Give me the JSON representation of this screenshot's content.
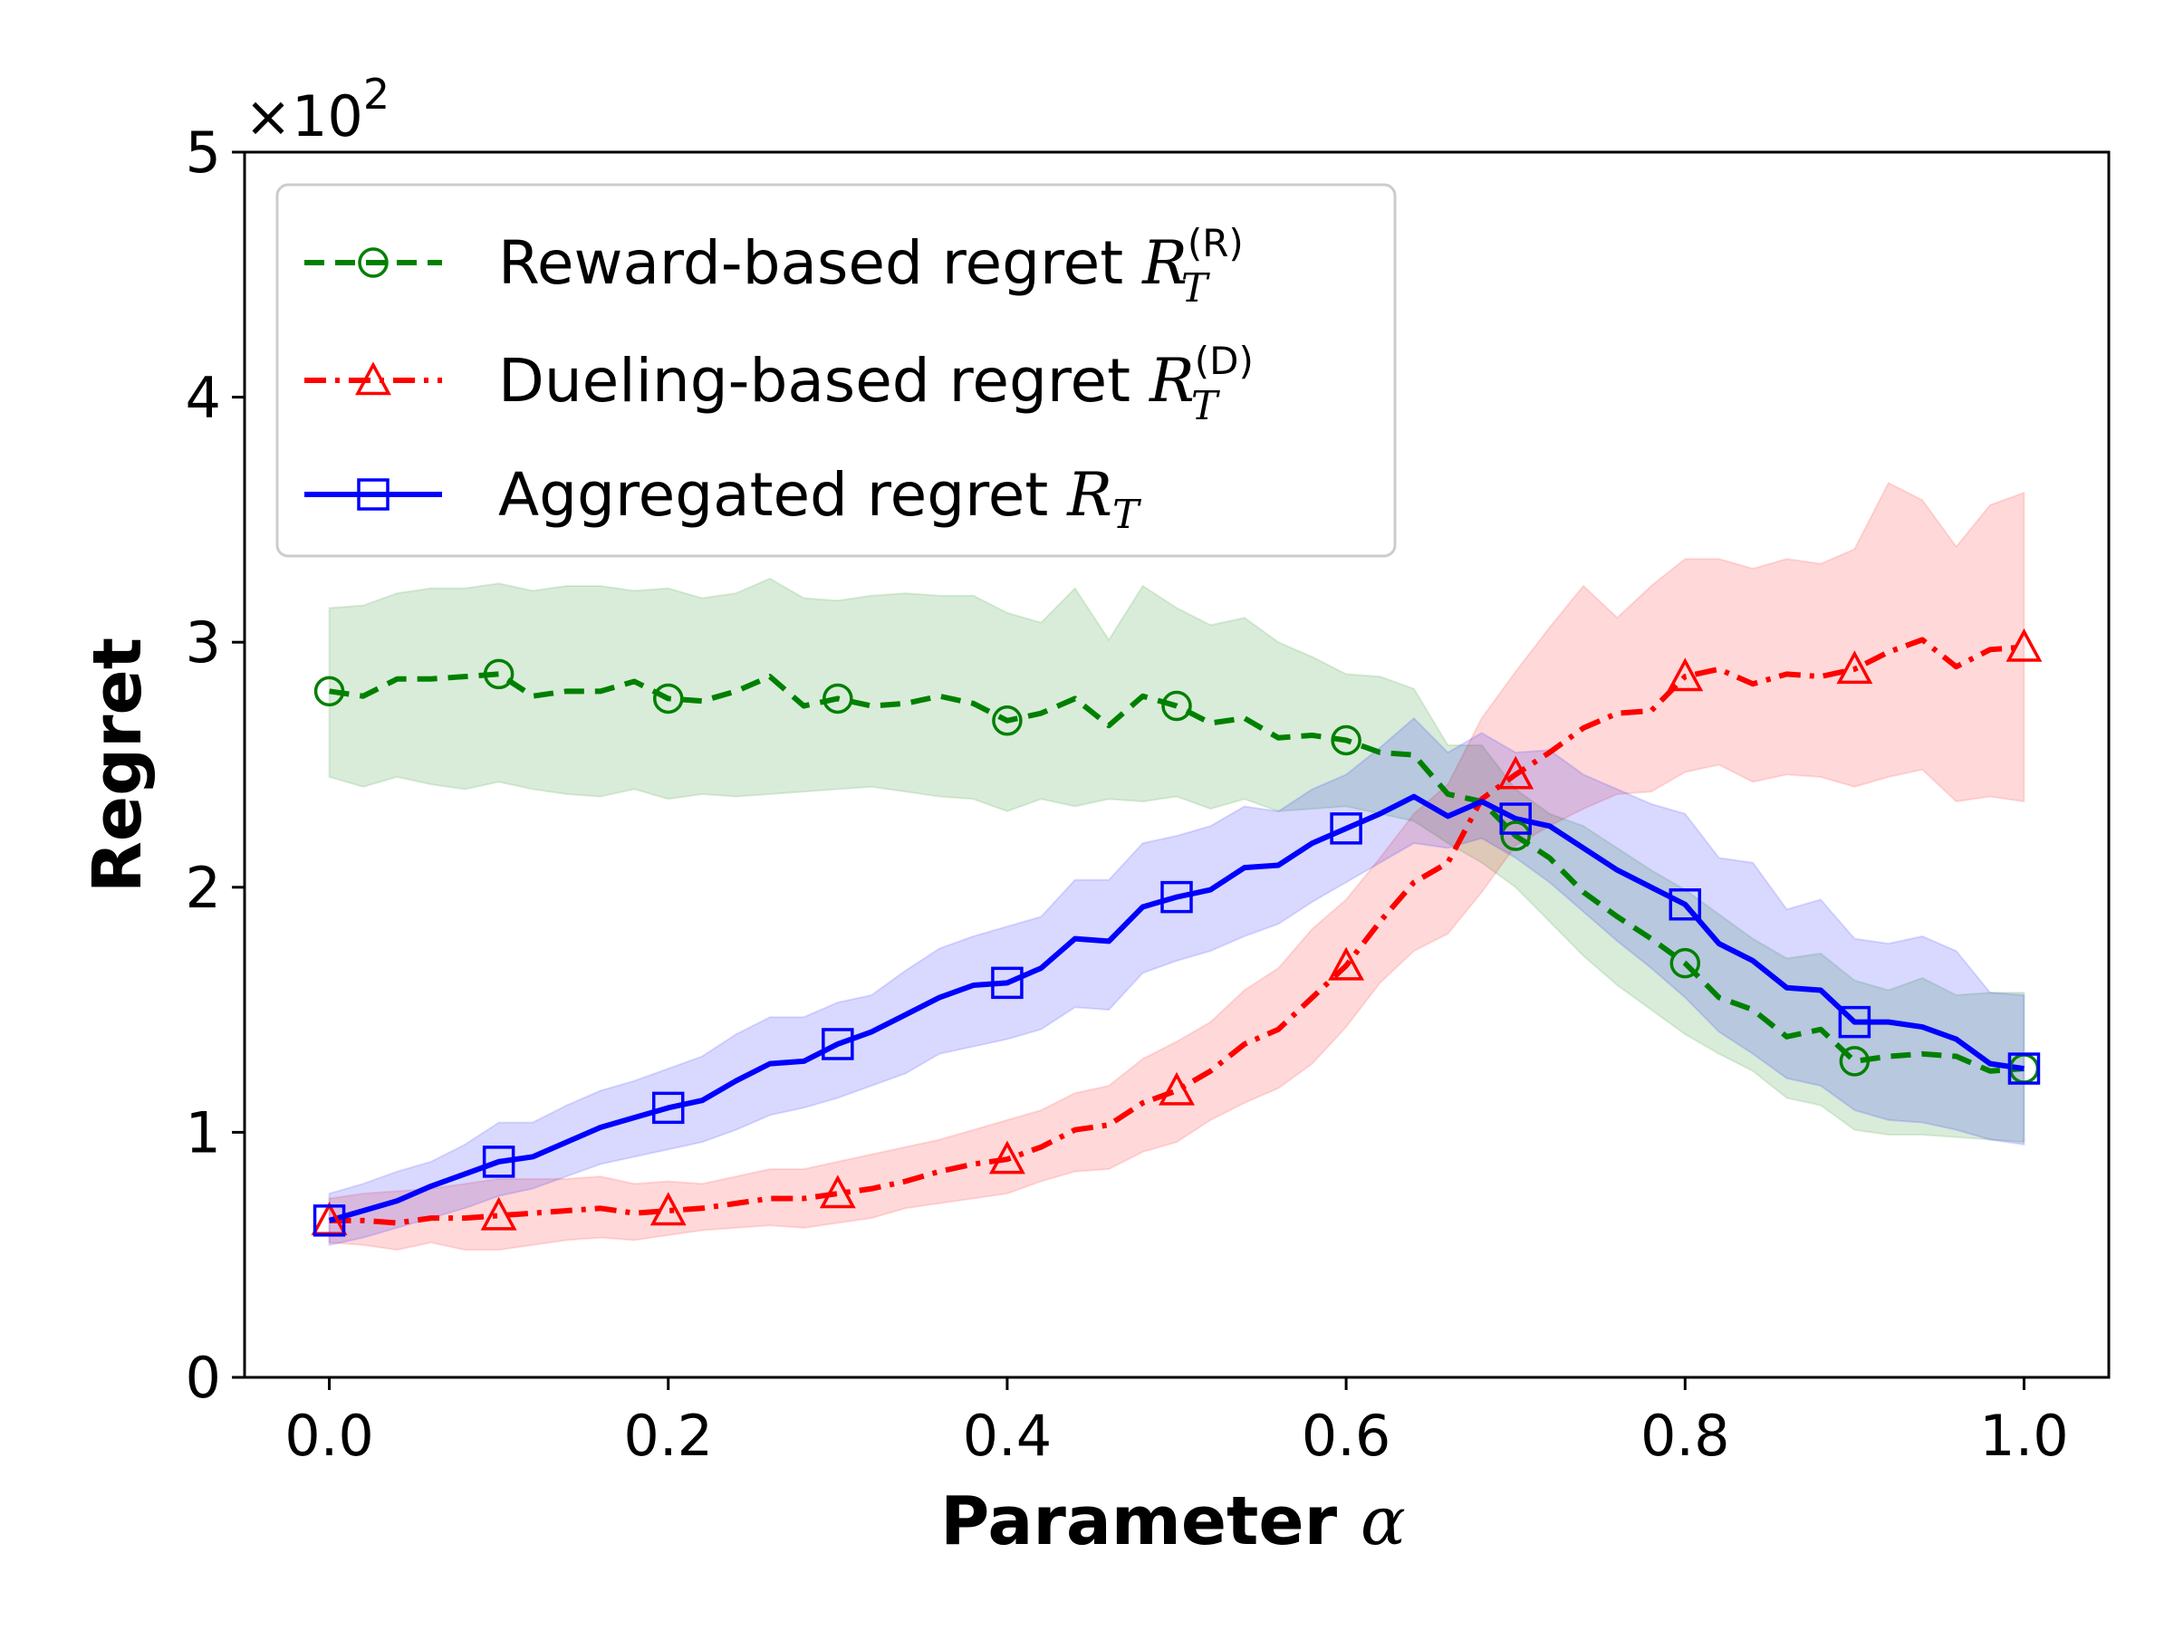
{
  "chart_data": {
    "type": "line",
    "xlabel": "Parameter",
    "xlabel_symbol": "α",
    "ylabel": "Regret",
    "y_multiplier": "×10",
    "y_multiplier_exp": "2",
    "xlim": [
      -0.05,
      1.05
    ],
    "ylim": [
      0,
      5
    ],
    "xticks": [
      "0.0",
      "0.2",
      "0.4",
      "0.6",
      "0.8",
      "1.0"
    ],
    "yticks": [
      "0",
      "1",
      "2",
      "3",
      "4",
      "5"
    ],
    "legend_position": "upper-left",
    "x": [
      0.0,
      0.02,
      0.04,
      0.06,
      0.08,
      0.1,
      0.12,
      0.14,
      0.16,
      0.18,
      0.2,
      0.22,
      0.24,
      0.26,
      0.28,
      0.3,
      0.32,
      0.34,
      0.36,
      0.38,
      0.4,
      0.42,
      0.44,
      0.46,
      0.48,
      0.5,
      0.52,
      0.54,
      0.56,
      0.58,
      0.6,
      0.62,
      0.64,
      0.66,
      0.68,
      0.7,
      0.72,
      0.74,
      0.76,
      0.78,
      0.8,
      0.82,
      0.84,
      0.86,
      0.88,
      0.9,
      0.92,
      0.94,
      0.96,
      0.98,
      1.0
    ],
    "marker_x": [
      0.0,
      0.1,
      0.2,
      0.3,
      0.4,
      0.5,
      0.6,
      0.7,
      0.8,
      0.9,
      1.0
    ],
    "series": [
      {
        "name": "Reward-based regret",
        "symbol": "R",
        "sub": "T",
        "sup": "(R)",
        "color": "#008000",
        "marker": "circle",
        "dash": "dashed",
        "values": [
          2.8,
          2.78,
          2.85,
          2.85,
          2.86,
          2.87,
          2.78,
          2.8,
          2.8,
          2.84,
          2.77,
          2.76,
          2.8,
          2.86,
          2.74,
          2.77,
          2.74,
          2.75,
          2.78,
          2.75,
          2.68,
          2.71,
          2.77,
          2.66,
          2.78,
          2.74,
          2.67,
          2.69,
          2.61,
          2.62,
          2.6,
          2.55,
          2.54,
          2.38,
          2.35,
          2.21,
          2.12,
          1.98,
          1.88,
          1.79,
          1.69,
          1.55,
          1.5,
          1.39,
          1.42,
          1.29,
          1.31,
          1.32,
          1.31,
          1.25,
          1.26
        ],
        "lower": [
          2.45,
          2.41,
          2.45,
          2.42,
          2.4,
          2.43,
          2.4,
          2.38,
          2.37,
          2.4,
          2.36,
          2.38,
          2.37,
          2.38,
          2.39,
          2.4,
          2.41,
          2.39,
          2.37,
          2.36,
          2.31,
          2.36,
          2.33,
          2.36,
          2.35,
          2.37,
          2.32,
          2.36,
          2.31,
          2.32,
          2.33,
          2.3,
          2.27,
          2.18,
          2.1,
          2.0,
          1.86,
          1.72,
          1.6,
          1.5,
          1.4,
          1.32,
          1.25,
          1.14,
          1.11,
          1.01,
          0.99,
          0.99,
          0.98,
          0.97,
          0.96
        ],
        "upper": [
          3.14,
          3.15,
          3.2,
          3.22,
          3.22,
          3.24,
          3.21,
          3.23,
          3.23,
          3.21,
          3.22,
          3.18,
          3.2,
          3.26,
          3.18,
          3.17,
          3.19,
          3.2,
          3.19,
          3.19,
          3.12,
          3.08,
          3.22,
          3.01,
          3.23,
          3.14,
          3.07,
          3.1,
          3.0,
          2.94,
          2.87,
          2.86,
          2.81,
          2.58,
          2.58,
          2.4,
          2.3,
          2.25,
          2.16,
          2.07,
          1.99,
          1.89,
          1.79,
          1.71,
          1.73,
          1.62,
          1.58,
          1.63,
          1.56,
          1.57,
          1.57
        ]
      },
      {
        "name": "Dueling-based regret",
        "symbol": "R",
        "sub": "T",
        "sup": "(D)",
        "color": "#ff0000",
        "marker": "triangle",
        "dash": "dashdot",
        "values": [
          0.64,
          0.64,
          0.63,
          0.65,
          0.65,
          0.66,
          0.67,
          0.68,
          0.69,
          0.67,
          0.68,
          0.69,
          0.71,
          0.73,
          0.73,
          0.75,
          0.77,
          0.8,
          0.84,
          0.87,
          0.89,
          0.94,
          1.01,
          1.03,
          1.12,
          1.17,
          1.25,
          1.36,
          1.42,
          1.55,
          1.68,
          1.86,
          2.02,
          2.1,
          2.36,
          2.46,
          2.55,
          2.65,
          2.71,
          2.72,
          2.86,
          2.89,
          2.83,
          2.87,
          2.86,
          2.89,
          2.96,
          3.01,
          2.9,
          2.97,
          2.98
        ],
        "lower": [
          0.55,
          0.54,
          0.52,
          0.55,
          0.52,
          0.52,
          0.54,
          0.56,
          0.57,
          0.56,
          0.58,
          0.6,
          0.61,
          0.62,
          0.61,
          0.63,
          0.65,
          0.69,
          0.71,
          0.73,
          0.75,
          0.8,
          0.84,
          0.85,
          0.92,
          0.96,
          1.05,
          1.12,
          1.18,
          1.28,
          1.43,
          1.61,
          1.74,
          1.81,
          1.98,
          2.17,
          2.25,
          2.32,
          2.38,
          2.39,
          2.47,
          2.5,
          2.43,
          2.46,
          2.45,
          2.41,
          2.45,
          2.48,
          2.35,
          2.37,
          2.35
        ],
        "upper": [
          0.73,
          0.75,
          0.76,
          0.77,
          0.79,
          0.81,
          0.81,
          0.81,
          0.82,
          0.79,
          0.8,
          0.79,
          0.82,
          0.85,
          0.85,
          0.88,
          0.91,
          0.94,
          0.97,
          1.01,
          1.05,
          1.09,
          1.16,
          1.19,
          1.3,
          1.37,
          1.45,
          1.58,
          1.67,
          1.83,
          1.95,
          2.12,
          2.3,
          2.42,
          2.69,
          2.88,
          3.06,
          3.23,
          3.1,
          3.23,
          3.34,
          3.34,
          3.3,
          3.34,
          3.32,
          3.38,
          3.65,
          3.58,
          3.39,
          3.56,
          3.61
        ]
      },
      {
        "name": "Aggregated regret",
        "symbol": "R",
        "sub": "T",
        "sup": "",
        "color": "#0000ff",
        "marker": "square",
        "dash": "solid",
        "values": [
          0.64,
          0.68,
          0.72,
          0.78,
          0.83,
          0.88,
          0.9,
          0.96,
          1.02,
          1.06,
          1.1,
          1.13,
          1.21,
          1.28,
          1.29,
          1.36,
          1.41,
          1.48,
          1.55,
          1.6,
          1.61,
          1.67,
          1.79,
          1.78,
          1.92,
          1.96,
          1.99,
          2.08,
          2.09,
          2.18,
          2.24,
          2.3,
          2.37,
          2.29,
          2.35,
          2.28,
          2.25,
          2.16,
          2.07,
          2.0,
          1.93,
          1.77,
          1.7,
          1.59,
          1.58,
          1.45,
          1.45,
          1.43,
          1.38,
          1.28,
          1.26
        ],
        "lower": [
          0.54,
          0.57,
          0.61,
          0.65,
          0.69,
          0.74,
          0.77,
          0.82,
          0.87,
          0.9,
          0.93,
          0.96,
          1.01,
          1.07,
          1.1,
          1.14,
          1.19,
          1.24,
          1.32,
          1.35,
          1.38,
          1.42,
          1.51,
          1.5,
          1.65,
          1.7,
          1.74,
          1.8,
          1.85,
          1.94,
          2.02,
          2.1,
          2.18,
          2.16,
          2.2,
          2.12,
          2.02,
          1.9,
          1.78,
          1.67,
          1.55,
          1.41,
          1.32,
          1.22,
          1.19,
          1.09,
          1.05,
          1.04,
          1.01,
          0.97,
          0.95
        ],
        "upper": [
          0.75,
          0.79,
          0.84,
          0.88,
          0.95,
          1.04,
          1.04,
          1.11,
          1.17,
          1.21,
          1.26,
          1.31,
          1.4,
          1.47,
          1.47,
          1.53,
          1.56,
          1.66,
          1.75,
          1.8,
          1.84,
          1.88,
          2.03,
          2.03,
          2.18,
          2.21,
          2.25,
          2.33,
          2.31,
          2.4,
          2.46,
          2.57,
          2.69,
          2.55,
          2.63,
          2.55,
          2.56,
          2.46,
          2.4,
          2.34,
          2.3,
          2.12,
          2.1,
          1.91,
          1.95,
          1.79,
          1.77,
          1.8,
          1.74,
          1.57,
          1.56
        ]
      }
    ]
  }
}
